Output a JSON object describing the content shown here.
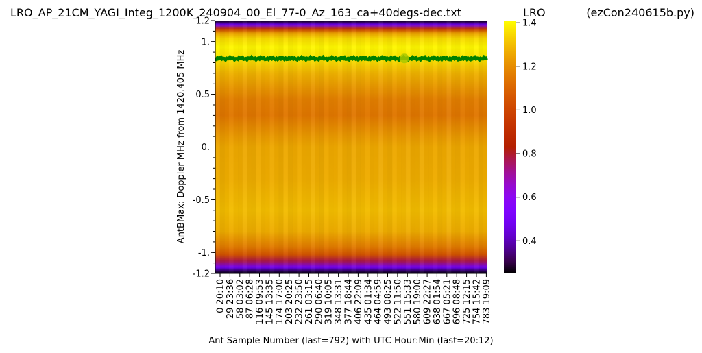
{
  "chart_data": {
    "type": "heatmap",
    "title": "LRO_AP_21CM_YAGI_Integ_1200K_240904_00_El_77-0_Az_163_ca+40degs-dec.txt",
    "colorbar_title": "LRO",
    "program_label": "(ezCon240615b.py)",
    "xlabel": "Ant Sample Number (last=792) with UTC Hour:Min (last=20:12)",
    "ylabel": "AntBMax:  Doppler MHz from 1420.405 MHz",
    "x_sample_range": [
      0,
      792
    ],
    "ylim": [
      -1.2,
      1.2
    ],
    "x_tick_labels": [
      "0  20:10",
      "29  23:36",
      "58  03:02",
      "87  06:28",
      "116  09:53",
      "145  13:35",
      "174  17:00",
      "203  20:25",
      "232  23:50",
      "261  03:15",
      "290  06:40",
      "319  10:05",
      "348  13:31",
      "377  18:44",
      "406  22:09",
      "435  01:34",
      "464  04:59",
      "493  08:25",
      "522  11:50",
      "551  15:33",
      "580  19:00",
      "609  22:27",
      "638  01:54",
      "667  05:21",
      "696  08:48",
      "725  12:15",
      "754  15:42",
      "783  19:09"
    ],
    "y_tick_labels": [
      {
        "label": "1.2",
        "value": 1.2
      },
      {
        "label": "1.",
        "value": 1.0
      },
      {
        "label": "0.5",
        "value": 0.5
      },
      {
        "label": "0.",
        "value": 0.0
      },
      {
        "label": "-0.5",
        "value": -0.5
      },
      {
        "label": "-1.",
        "value": -1.0
      },
      {
        "label": "-1.2",
        "value": -1.2
      }
    ],
    "colorbar": {
      "colormap": "gnuplot",
      "range": [
        0.25,
        1.41
      ],
      "ticks": [
        {
          "label": "1.4",
          "value": 1.4
        },
        {
          "label": "1.2",
          "value": 1.2
        },
        {
          "label": "1.0",
          "value": 1.0
        },
        {
          "label": "0.8",
          "value": 0.8
        },
        {
          "label": "0.6",
          "value": 0.6
        },
        {
          "label": "0.4",
          "value": 0.4
        }
      ]
    },
    "intensity_profile": [
      {
        "doppler": 1.2,
        "value": 0.25
      },
      {
        "doppler": 1.16,
        "value": 0.5
      },
      {
        "doppler": 1.12,
        "value": 0.95
      },
      {
        "doppler": 1.08,
        "value": 1.25
      },
      {
        "doppler": 1.03,
        "value": 1.35
      },
      {
        "doppler": 0.95,
        "value": 1.4
      },
      {
        "doppler": 0.85,
        "value": 1.37
      },
      {
        "doppler": 0.7,
        "value": 1.28
      },
      {
        "doppler": 0.45,
        "value": 1.17
      },
      {
        "doppler": 0.3,
        "value": 1.15
      },
      {
        "doppler": 0.1,
        "value": 1.23
      },
      {
        "doppler": 0.0,
        "value": 1.26
      },
      {
        "doppler": -0.3,
        "value": 1.27
      },
      {
        "doppler": -0.6,
        "value": 1.3
      },
      {
        "doppler": -0.8,
        "value": 1.27
      },
      {
        "doppler": -0.95,
        "value": 1.16
      },
      {
        "doppler": -1.02,
        "value": 1.05
      },
      {
        "doppler": -1.08,
        "value": 0.78
      },
      {
        "doppler": -1.14,
        "value": 0.5
      },
      {
        "doppler": -1.2,
        "value": 0.25
      }
    ],
    "series": [
      {
        "marker_color": "#008000",
        "doppler_level": 0.84
      }
    ],
    "highlight_point": {
      "sample": 551,
      "doppler": 0.84,
      "color": "#a8c800"
    },
    "grid": false
  }
}
